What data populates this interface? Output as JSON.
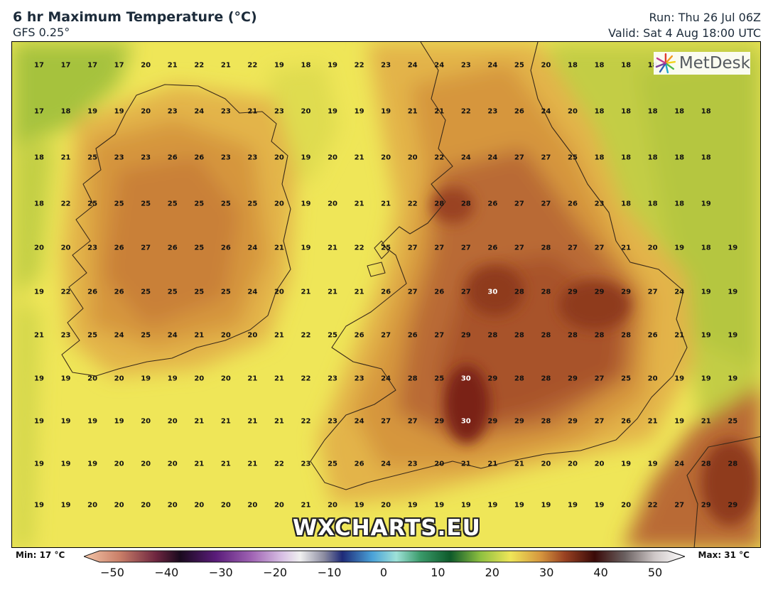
{
  "header": {
    "title": "6 hr Maximum Temperature (°C)",
    "model": "GFS 0.25°",
    "run": "Run: Thu 26 Jul 06Z",
    "valid": "Valid: Sat 4 Aug 18:00 UTC"
  },
  "logo": {
    "text": "MetDesk"
  },
  "watermark": "WXCHARTS.EU",
  "legend": {
    "min_label": "Min: 17 °C",
    "max_label": "Max: 31 °C",
    "ticks": [
      "−50",
      "−40",
      "−30",
      "−20",
      "−10",
      "0",
      "10",
      "20",
      "30",
      "40",
      "50"
    ]
  },
  "colors": {
    "cool_green": "#a6c23c",
    "yellow_green": "#d2d548",
    "yellow": "#efe658",
    "light_orange": "#e3b448",
    "orange": "#d6963e",
    "brown": "#b96a34",
    "dark_brown": "#9a4222",
    "darkest": "#6e1a10",
    "coast": "#3a2a1a"
  },
  "grid_values": [
    [
      "17",
      "17",
      "17",
      "17",
      "20",
      "21",
      "22",
      "21",
      "22",
      "19",
      "18",
      "19",
      "22",
      "23",
      "24",
      "24",
      "23",
      "24",
      "25",
      "20",
      "18",
      "18",
      "18",
      "18",
      "",
      ""
    ],
    [
      "17",
      "18",
      "19",
      "19",
      "20",
      "23",
      "24",
      "23",
      "21",
      "23",
      "20",
      "19",
      "19",
      "19",
      "21",
      "21",
      "22",
      "23",
      "26",
      "24",
      "20",
      "18",
      "18",
      "18",
      "18",
      "18"
    ],
    [
      "18",
      "21",
      "25",
      "23",
      "23",
      "26",
      "26",
      "23",
      "23",
      "20",
      "19",
      "20",
      "21",
      "20",
      "20",
      "22",
      "24",
      "24",
      "27",
      "27",
      "25",
      "18",
      "18",
      "18",
      "18",
      "18"
    ],
    [
      "18",
      "22",
      "25",
      "25",
      "25",
      "25",
      "25",
      "25",
      "25",
      "20",
      "19",
      "20",
      "21",
      "21",
      "22",
      "28",
      "28",
      "26",
      "27",
      "27",
      "26",
      "23",
      "18",
      "18",
      "18",
      "19"
    ],
    [
      "20",
      "20",
      "23",
      "26",
      "27",
      "26",
      "25",
      "26",
      "24",
      "21",
      "19",
      "21",
      "22",
      "25",
      "27",
      "27",
      "27",
      "26",
      "27",
      "28",
      "27",
      "27",
      "21",
      "20",
      "19",
      "18",
      "19"
    ],
    [
      "19",
      "22",
      "26",
      "26",
      "25",
      "25",
      "25",
      "25",
      "24",
      "20",
      "21",
      "21",
      "21",
      "26",
      "27",
      "26",
      "27",
      "30",
      "28",
      "28",
      "29",
      "29",
      "29",
      "27",
      "24",
      "19",
      "19"
    ],
    [
      "21",
      "23",
      "25",
      "24",
      "25",
      "24",
      "21",
      "20",
      "20",
      "21",
      "22",
      "25",
      "26",
      "27",
      "26",
      "27",
      "29",
      "28",
      "28",
      "28",
      "28",
      "28",
      "28",
      "26",
      "21",
      "19",
      "19"
    ],
    [
      "19",
      "19",
      "20",
      "20",
      "19",
      "19",
      "20",
      "20",
      "21",
      "21",
      "22",
      "23",
      "23",
      "24",
      "28",
      "25",
      "30",
      "29",
      "28",
      "28",
      "29",
      "27",
      "25",
      "20",
      "19",
      "19",
      "19"
    ],
    [
      "19",
      "19",
      "19",
      "19",
      "20",
      "20",
      "21",
      "21",
      "21",
      "21",
      "22",
      "23",
      "24",
      "27",
      "27",
      "29",
      "30",
      "29",
      "29",
      "28",
      "29",
      "27",
      "26",
      "21",
      "19",
      "21",
      "25"
    ],
    [
      "19",
      "19",
      "19",
      "20",
      "20",
      "20",
      "21",
      "21",
      "21",
      "22",
      "23",
      "25",
      "26",
      "24",
      "23",
      "20",
      "21",
      "21",
      "21",
      "20",
      "20",
      "20",
      "19",
      "19",
      "24",
      "28",
      "28"
    ],
    [
      "19",
      "19",
      "20",
      "20",
      "20",
      "20",
      "20",
      "20",
      "20",
      "20",
      "21",
      "20",
      "19",
      "20",
      "19",
      "19",
      "19",
      "19",
      "19",
      "19",
      "19",
      "19",
      "20",
      "22",
      "27",
      "29",
      "29"
    ]
  ]
}
